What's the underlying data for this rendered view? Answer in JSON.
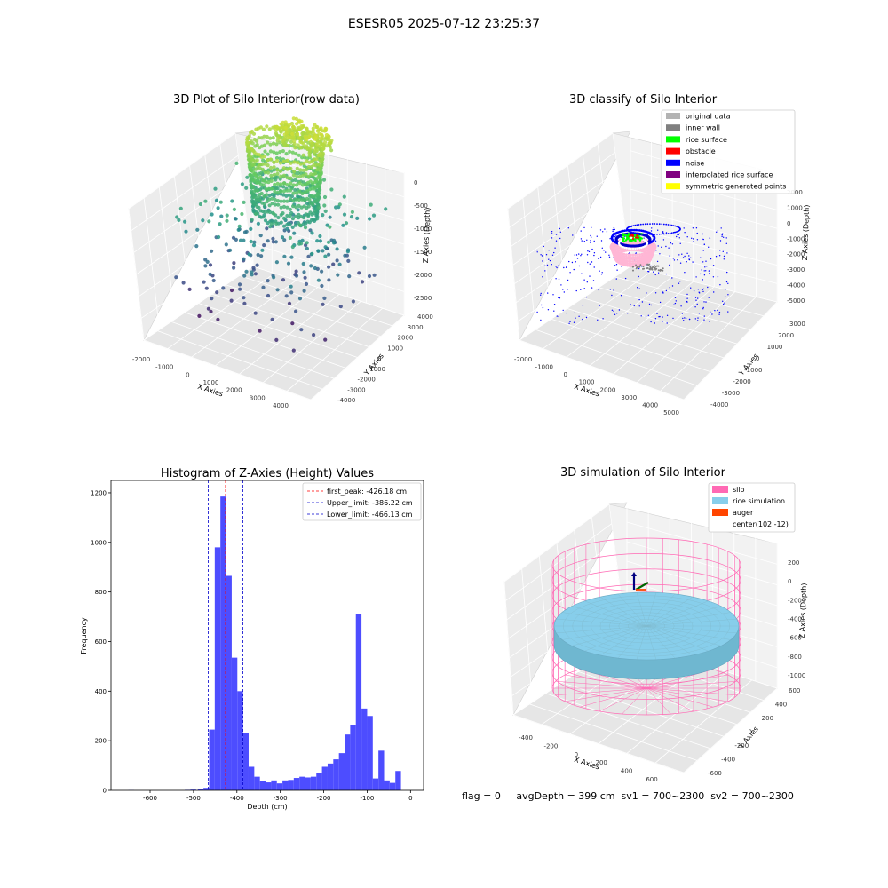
{
  "suptitle": "ESESR05 2025-07-12 23:25:37",
  "colors": {
    "hist_bar": "#4d4dff",
    "peak_line": "#ff0000",
    "limit_line": "#0000cc",
    "legend_original": "#b3b3b3",
    "legend_inner_wall": "#808080",
    "legend_rice_surface": "#00ff00",
    "legend_obstacle": "#ff0000",
    "legend_noise": "#0000ff",
    "legend_interp": "#800080",
    "legend_symmetric": "#ffff00",
    "legend_silo": "#ff69b4",
    "legend_rice_sim": "#87ceeb",
    "legend_auger": "#ff4500"
  },
  "chart_data": [
    {
      "type": "scatter3d",
      "title": "3D Plot of Silo Interior(row data)",
      "xlabel": "X Axies",
      "ylabel": "Y Axies",
      "zlabel": "Z Axies (Depth)",
      "x_ticks": [
        "-2000",
        "-1000",
        "0",
        "1000",
        "2000",
        "3000",
        "4000"
      ],
      "y_ticks": [
        "-4000",
        "-3000",
        "-2000",
        "-1000",
        "0",
        "1000",
        "2000",
        "3000",
        "4000"
      ],
      "z_ticks": [
        "0",
        "-500",
        "-1000",
        "-1500",
        "-2000",
        "-2500"
      ],
      "xlim": [
        -2300,
        4500
      ],
      "ylim": [
        -4200,
        4300
      ],
      "zlim": [
        -2900,
        100
      ],
      "colormap": "viridis"
    },
    {
      "type": "scatter3d",
      "title": "3D classify of Silo Interior",
      "xlabel": "X Axies",
      "ylabel": "Y Axies",
      "zlabel": "Z Axies (Depth)",
      "x_ticks": [
        "-2000",
        "-1000",
        "0",
        "1000",
        "2000",
        "3000",
        "4000",
        "5000"
      ],
      "y_ticks": [
        "-4000",
        "-3000",
        "-2000",
        "-1000",
        "0",
        "1000",
        "2000",
        "3000"
      ],
      "z_ticks": [
        "2000",
        "1000",
        "0",
        "-1000",
        "-2000",
        "-3000",
        "-4000",
        "-5000"
      ],
      "legend": [
        "original data",
        "inner wall",
        "rice surface",
        "obstacle",
        "noise",
        "interpolated rice surface",
        "symmetric generated points"
      ],
      "legend_position": "top-right"
    },
    {
      "type": "bar",
      "title": "Histogram of Z-Axies (Height) Values",
      "xlabel": "Depth (cm)",
      "ylabel": "Frequency",
      "xlim": [
        -690,
        30
      ],
      "ylim": [
        0,
        1250
      ],
      "x_ticks": [
        -600,
        -500,
        -400,
        -300,
        -200,
        -100,
        0
      ],
      "y_ticks": [
        0,
        200,
        400,
        600,
        800,
        1000,
        1200
      ],
      "bins": [
        {
          "x0": -650,
          "x1": -637,
          "count": 1
        },
        {
          "x0": -520,
          "x1": -507,
          "count": 2
        },
        {
          "x0": -507,
          "x1": -494,
          "count": 3
        },
        {
          "x0": -490,
          "x1": -477,
          "count": 5
        },
        {
          "x0": -477,
          "x1": -464,
          "count": 10
        },
        {
          "x0": -464,
          "x1": -451,
          "count": 245
        },
        {
          "x0": -451,
          "x1": -438,
          "count": 980
        },
        {
          "x0": -438,
          "x1": -425,
          "count": 1185
        },
        {
          "x0": -425,
          "x1": -412,
          "count": 865
        },
        {
          "x0": -412,
          "x1": -399,
          "count": 535
        },
        {
          "x0": -399,
          "x1": -386,
          "count": 400
        },
        {
          "x0": -386,
          "x1": -373,
          "count": 232
        },
        {
          "x0": -373,
          "x1": -360,
          "count": 95
        },
        {
          "x0": -360,
          "x1": -347,
          "count": 55
        },
        {
          "x0": -347,
          "x1": -334,
          "count": 38
        },
        {
          "x0": -334,
          "x1": -321,
          "count": 32
        },
        {
          "x0": -321,
          "x1": -308,
          "count": 40
        },
        {
          "x0": -308,
          "x1": -295,
          "count": 28
        },
        {
          "x0": -295,
          "x1": -282,
          "count": 40
        },
        {
          "x0": -282,
          "x1": -269,
          "count": 42
        },
        {
          "x0": -269,
          "x1": -256,
          "count": 50
        },
        {
          "x0": -256,
          "x1": -243,
          "count": 55
        },
        {
          "x0": -243,
          "x1": -230,
          "count": 52
        },
        {
          "x0": -230,
          "x1": -217,
          "count": 55
        },
        {
          "x0": -217,
          "x1": -204,
          "count": 70
        },
        {
          "x0": -204,
          "x1": -191,
          "count": 95
        },
        {
          "x0": -191,
          "x1": -178,
          "count": 108
        },
        {
          "x0": -178,
          "x1": -165,
          "count": 125
        },
        {
          "x0": -165,
          "x1": -152,
          "count": 150
        },
        {
          "x0": -152,
          "x1": -139,
          "count": 225
        },
        {
          "x0": -139,
          "x1": -126,
          "count": 265
        },
        {
          "x0": -126,
          "x1": -113,
          "count": 710
        },
        {
          "x0": -113,
          "x1": -100,
          "count": 330
        },
        {
          "x0": -100,
          "x1": -87,
          "count": 300
        },
        {
          "x0": -87,
          "x1": -74,
          "count": 48
        },
        {
          "x0": -74,
          "x1": -61,
          "count": 160
        },
        {
          "x0": -61,
          "x1": -48,
          "count": 40
        },
        {
          "x0": -48,
          "x1": -35,
          "count": 30
        },
        {
          "x0": -35,
          "x1": -22,
          "count": 78
        }
      ],
      "lines": [
        {
          "label": "first_peak: -426.18 cm",
          "x": -426.18,
          "color": "#ff0000"
        },
        {
          "label": "Upper_limit: -386.22 cm",
          "x": -386.22,
          "color": "#0000cc"
        },
        {
          "label": "Lower_limit: -466.13 cm",
          "x": -466.13,
          "color": "#0000cc"
        }
      ],
      "legend_position": "top-right"
    },
    {
      "type": "surface3d",
      "title": "3D simulation of Silo Interior",
      "xlabel": "X Axies",
      "ylabel": "Y Axies",
      "zlabel": "Z Axies (Depth)",
      "x_ticks": [
        "-400",
        "-200",
        "0",
        "200",
        "400",
        "600"
      ],
      "y_ticks": [
        "-600",
        "-400",
        "-200",
        "0",
        "200",
        "400",
        "600"
      ],
      "z_ticks": [
        "200",
        "0",
        "-200",
        "-400",
        "-600",
        "-800",
        "-1000"
      ],
      "legend": [
        "silo",
        "rice simulation",
        "auger",
        "center(102,-12)"
      ],
      "legend_position": "top-right"
    }
  ],
  "status_line": "flag = 0     avgDepth = 399 cm  sv1 = 700~2300  sv2 = 700~2300"
}
